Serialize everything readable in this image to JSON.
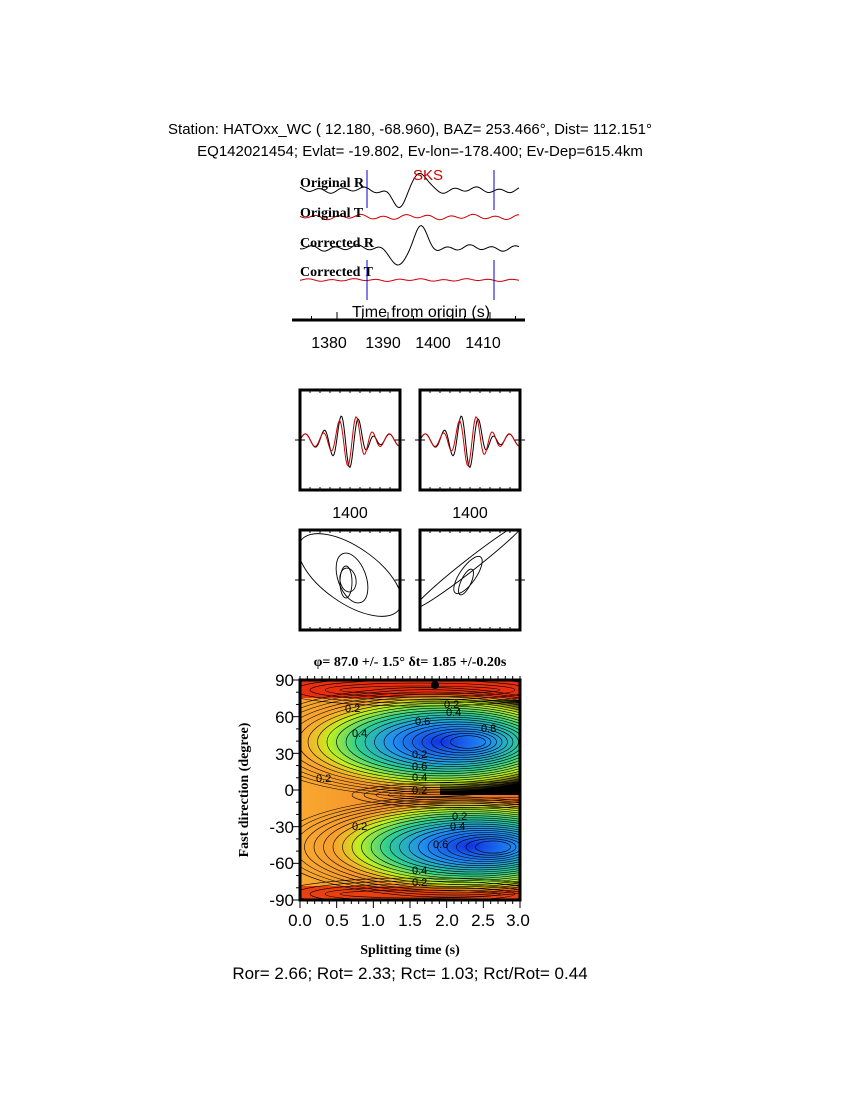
{
  "header": {
    "line1": "Station: HATOxx_WC (   12.180,  -68.960), BAZ=  253.466°, Dist=  112.151°",
    "line2": "EQ142021454; Evlat= -19.802, Ev-lon=-178.400; Ev-Dep=615.4km"
  },
  "chart_data": [
    {
      "type": "line",
      "phase_label": "SKS",
      "traces": [
        "Original R",
        "Original T",
        "Corrected R",
        "Corrected T"
      ],
      "trace_colors": {
        "R": "#000000",
        "T": "#cc0000"
      },
      "window_marker_color": "#0000cc",
      "window_markers_s": [
        1386,
        1411.5
      ],
      "xlabel": "Time from origin (s)",
      "xticks": [
        "1380",
        "1390",
        "1400",
        "1410"
      ],
      "xlim": [
        1374,
        1417
      ]
    },
    {
      "type": "line",
      "panels": [
        "waveform-pre",
        "waveform-post"
      ],
      "xtick_label": "1400"
    },
    {
      "type": "line",
      "panels": [
        "particle-motion-pre",
        "particle-motion-post"
      ]
    },
    {
      "type": "heatmap",
      "title": "φ= 87.0 +/- 1.5° δt= 1.85 +/-0.20s",
      "xlabel": "Splitting time (s)",
      "ylabel": "Fast direction (degree)",
      "xlim": [
        0,
        3
      ],
      "ylim": [
        -90,
        90
      ],
      "xticks": [
        "0.0",
        "0.5",
        "1.0",
        "1.5",
        "2.0",
        "2.5",
        "3.0"
      ],
      "yticks": [
        "90",
        "60",
        "30",
        "0",
        "-30",
        "-60",
        "-90"
      ],
      "best_fit": {
        "dt": 1.85,
        "phi": 87.0
      },
      "contour_labels": [
        "0.2",
        "0.4",
        "0.2",
        "0.4",
        "0.6",
        "0.8",
        "0.2",
        "0.6",
        "0.4",
        "0.2",
        "0.2",
        "0.2",
        "0.4",
        "0.2",
        "0.6",
        "0.4",
        "0.2"
      ]
    }
  ],
  "footer": "Ror= 2.66; Rot= 2.33; Rct= 1.03; Rct/Rot= 0.44"
}
